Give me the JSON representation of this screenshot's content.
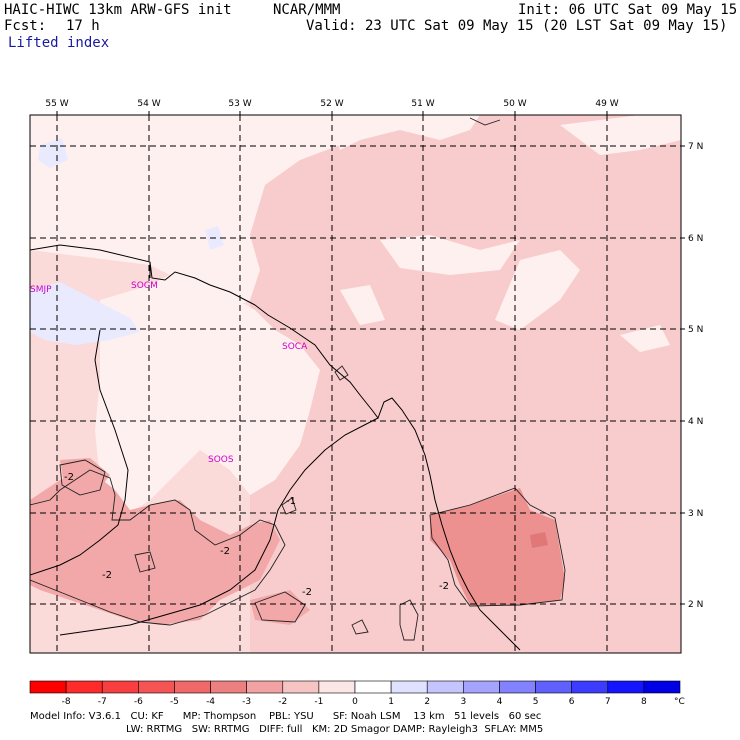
{
  "header": {
    "model": "HAIC-HIWC 13km ARW-GFS init",
    "agency": "NCAR/MMM",
    "fcst_label": "Fcst:",
    "fcst_value": "17 h",
    "field": "Lifted index",
    "init": "Init: 06 UTC Sat 09 May 15",
    "valid": "Valid: 23 UTC Sat 09 May 15 (20 LST Sat 09 May 15)"
  },
  "map": {
    "lon_labels": [
      "55 W",
      "54 W",
      "53 W",
      "52 W",
      "51 W",
      "50 W",
      "49 W"
    ],
    "lat_labels": [
      "7 N",
      "6 N",
      "5 N",
      "4 N",
      "3 N",
      "2 N"
    ],
    "stations": [
      "SMJP",
      "SOCM",
      "SOCA",
      "SOOS"
    ],
    "contour_labels": [
      "-2",
      "-2",
      "-2",
      "-2",
      "-2",
      "-1"
    ],
    "colors": {
      "very_light": "#fff0f0",
      "light": "#fbdada",
      "light_medium": "#f7c6c6",
      "medium": "#f2a8a8",
      "medium_dark": "#ec9090",
      "positive_light": "#eaeaff",
      "coast": "#000000",
      "station": "#cc00cc"
    }
  },
  "colorbar": {
    "ticks": [
      "-8",
      "-7",
      "-6",
      "-5",
      "-4",
      "-3",
      "-2",
      "-1",
      "0",
      "1",
      "2",
      "3",
      "4",
      "5",
      "6",
      "7",
      "8"
    ],
    "unit": "°C",
    "colors": [
      "#ff0000",
      "#ff2a2a",
      "#f83e3e",
      "#f45454",
      "#f06868",
      "#ec8080",
      "#f2a2a2",
      "#f7c4c4",
      "#fde6e6",
      "#ffffff",
      "#e0e0ff",
      "#c4c4ff",
      "#a4a4ff",
      "#8282ff",
      "#6060ff",
      "#3c3cff",
      "#1414ff",
      "#0000e6"
    ]
  },
  "footer": {
    "line1": "Model Info: V3.6.1   CU: KF      MP: Thompson    PBL: YSU      SF: Noah LSM    13 km   51 levels   60 sec",
    "line2": "LW: RRTMG   SW: RRTMG   DIFF: full   KM: 2D Smagor DAMP: Rayleigh3  SFLAY: MM5"
  }
}
